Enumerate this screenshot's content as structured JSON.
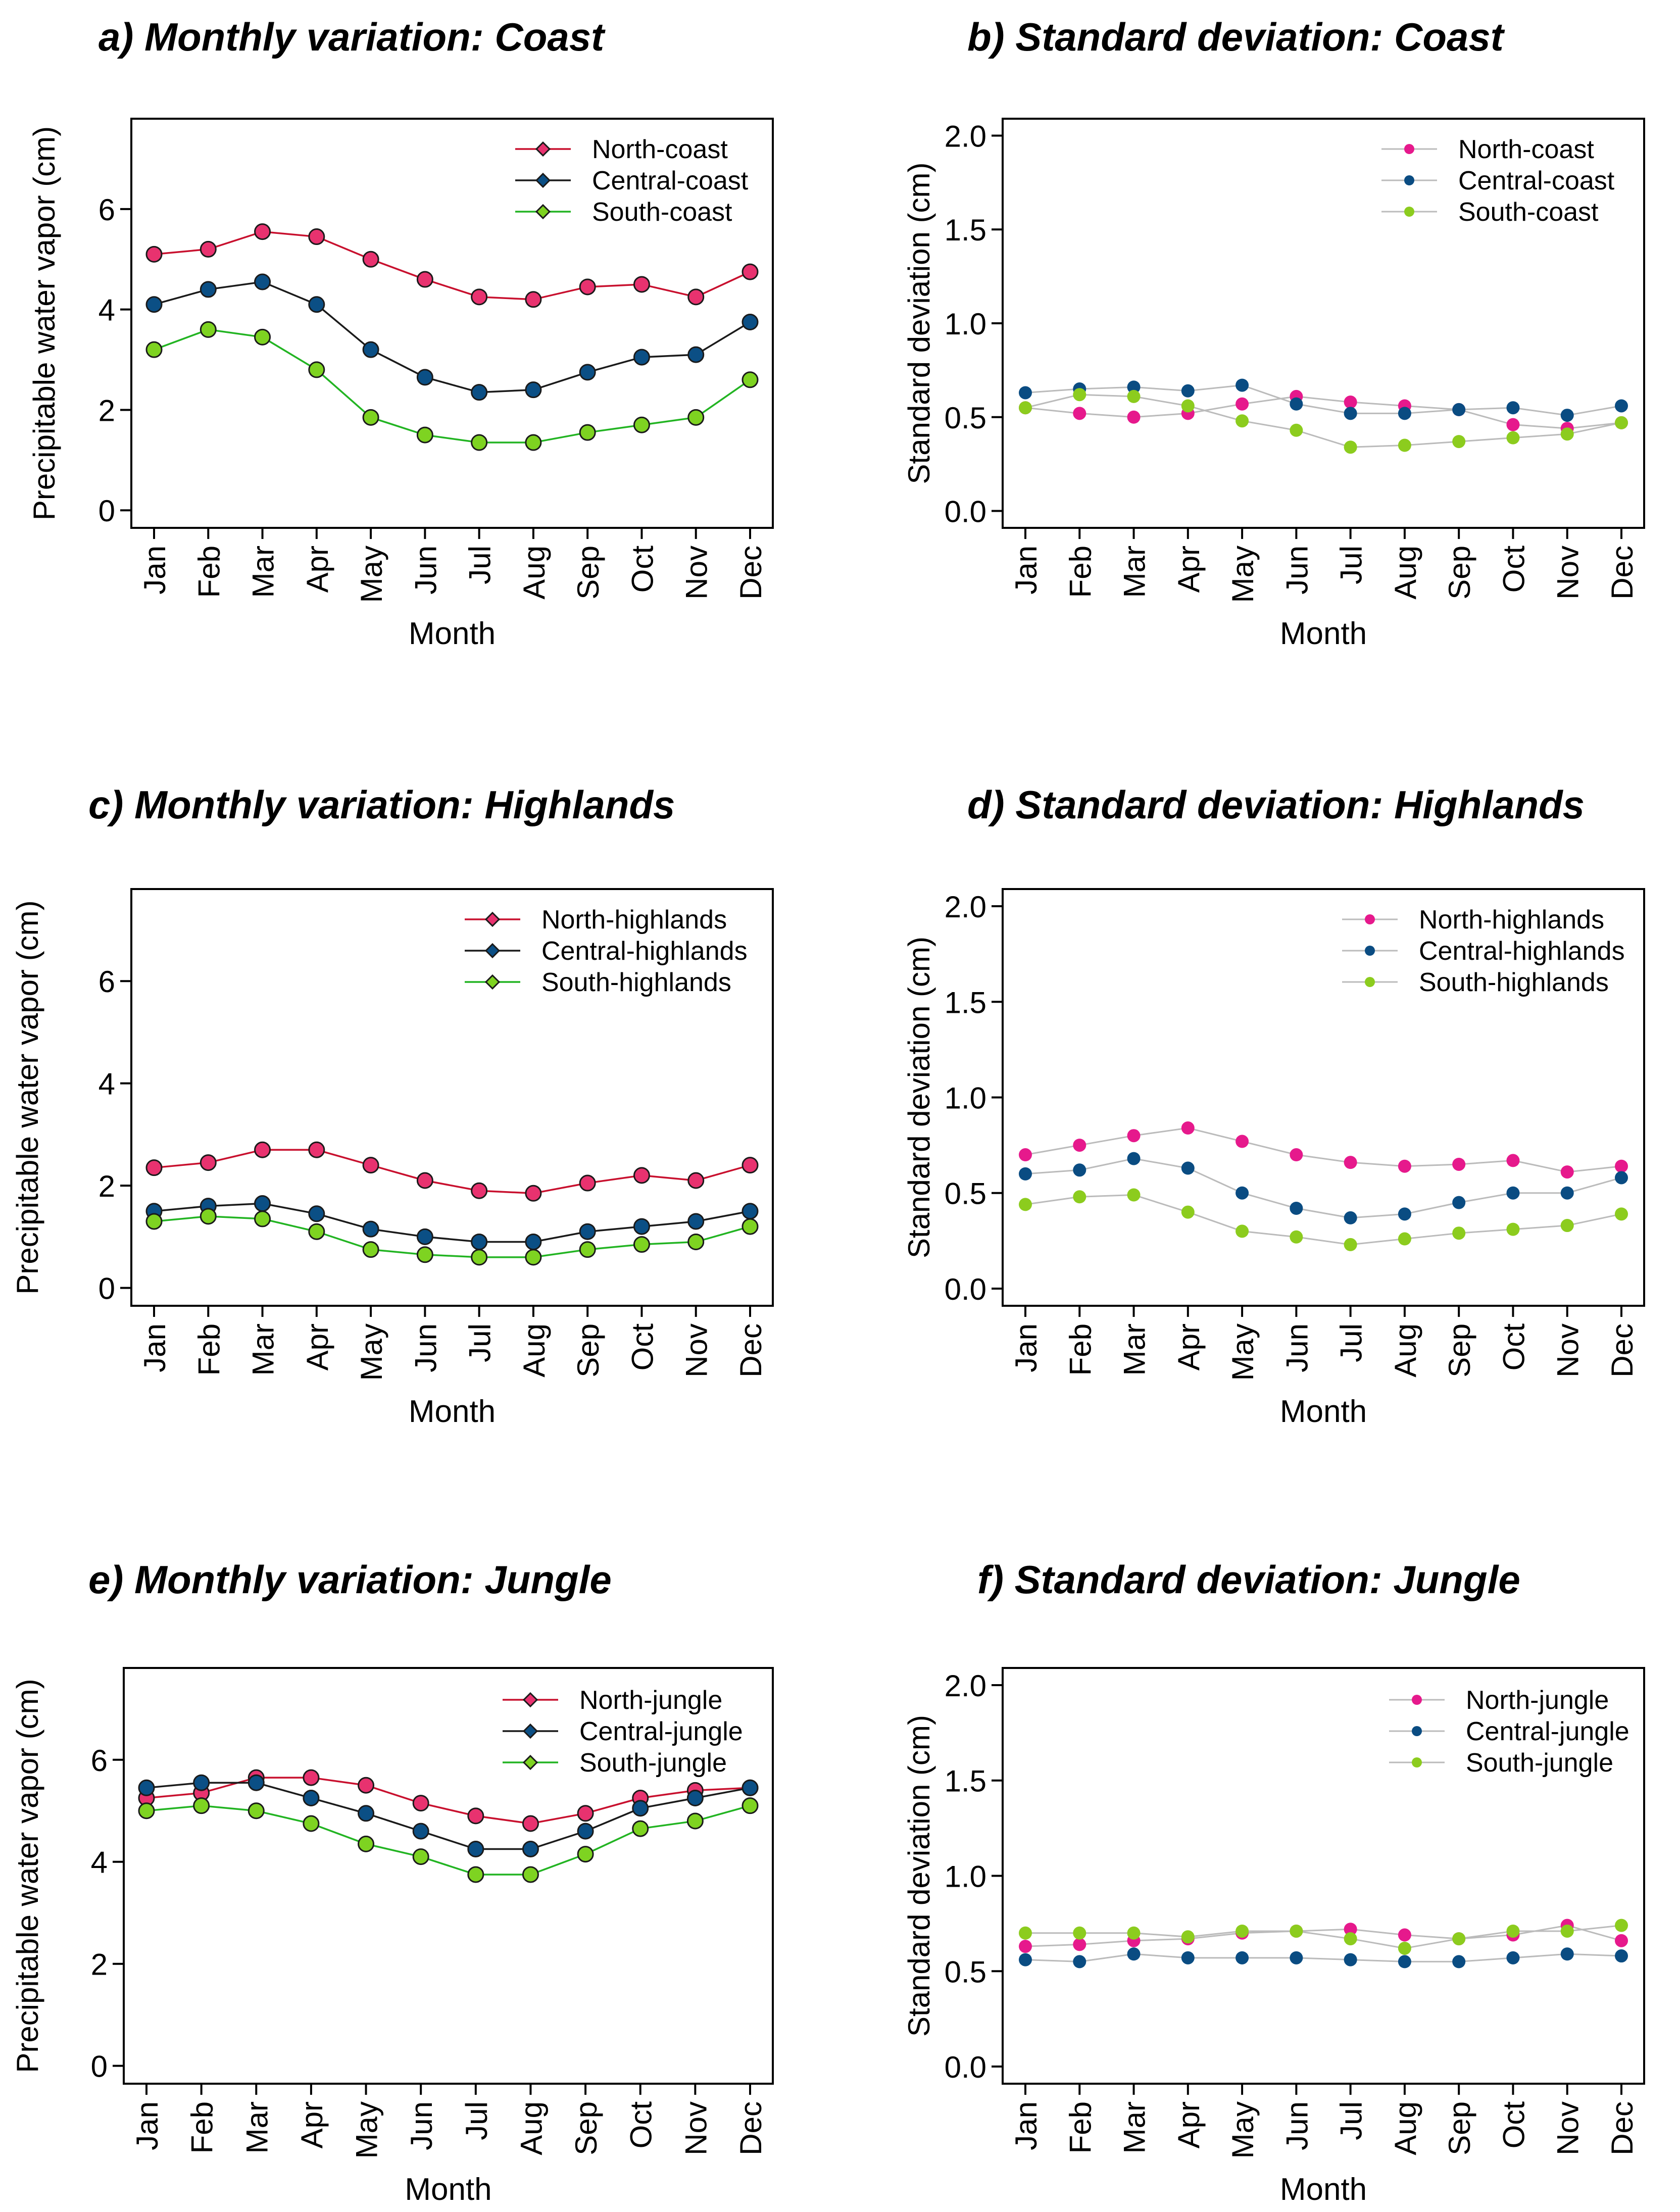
{
  "months": [
    "Jan",
    "Feb",
    "Mar",
    "Apr",
    "May",
    "Jun",
    "Jul",
    "Aug",
    "Sep",
    "Oct",
    "Nov",
    "Dec"
  ],
  "chart_data": [
    {
      "id": "a",
      "type": "line",
      "title": "a) Monthly variation: Coast",
      "xlabel": "Month",
      "ylabel": "Precipitable water vapor (cm)",
      "ylim": [
        -0.35,
        7.8
      ],
      "yticks": [
        0,
        2,
        4,
        6
      ],
      "ytick_labels": [
        "0",
        "2",
        "4",
        "6"
      ],
      "legend_position": "top-right",
      "series": [
        {
          "name": "North-coast",
          "line": "#c8102e",
          "fill": "#e8326f",
          "values": [
            5.1,
            5.2,
            5.55,
            5.45,
            5.0,
            4.6,
            4.25,
            4.2,
            4.45,
            4.5,
            4.25,
            4.75
          ]
        },
        {
          "name": "Central-coast",
          "line": "#1a1a1a",
          "fill": "#0b4f85",
          "values": [
            4.1,
            4.4,
            4.55,
            4.1,
            3.2,
            2.65,
            2.35,
            2.4,
            2.75,
            3.05,
            3.1,
            3.75
          ]
        },
        {
          "name": "South-coast",
          "line": "#22b422",
          "fill": "#7ed321",
          "values": [
            3.2,
            3.6,
            3.45,
            2.8,
            1.85,
            1.5,
            1.35,
            1.35,
            1.55,
            1.7,
            1.85,
            2.6
          ]
        }
      ]
    },
    {
      "id": "b",
      "type": "line",
      "title": "b) Standard deviation: Coast",
      "xlabel": "Month",
      "ylabel": "Standard deviation (cm)",
      "ylim": [
        -0.09,
        2.09
      ],
      "yticks": [
        0,
        0.5,
        1.0,
        1.5,
        2.0
      ],
      "ytick_labels": [
        "0.0",
        "0.5",
        "1.0",
        "1.5",
        "2.0"
      ],
      "legend_position": "top-right",
      "series": [
        {
          "name": "North-coast",
          "line": "#bbbbbb",
          "fill": "#e6198c",
          "values": [
            0.55,
            0.52,
            0.5,
            0.52,
            0.57,
            0.61,
            0.58,
            0.56,
            0.54,
            0.46,
            0.44,
            0.47
          ]
        },
        {
          "name": "Central-coast",
          "line": "#bbbbbb",
          "fill": "#0a4c82",
          "values": [
            0.63,
            0.65,
            0.66,
            0.64,
            0.67,
            0.57,
            0.52,
            0.52,
            0.54,
            0.55,
            0.51,
            0.56
          ]
        },
        {
          "name": "South-coast",
          "line": "#bbbbbb",
          "fill": "#8ccc1e",
          "values": [
            0.55,
            0.62,
            0.61,
            0.56,
            0.48,
            0.43,
            0.34,
            0.35,
            0.37,
            0.39,
            0.41,
            0.47
          ]
        }
      ]
    },
    {
      "id": "c",
      "type": "line",
      "title": "c) Monthly variation: Highlands",
      "xlabel": "Month",
      "ylabel": "Precipitable water vapor (cm)",
      "ylim": [
        -0.35,
        7.8
      ],
      "yticks": [
        0,
        2,
        4,
        6
      ],
      "ytick_labels": [
        "0",
        "2",
        "4",
        "6"
      ],
      "legend_position": "top-right",
      "series": [
        {
          "name": "North-highlands",
          "line": "#c8102e",
          "fill": "#e8326f",
          "values": [
            2.35,
            2.45,
            2.7,
            2.7,
            2.4,
            2.1,
            1.9,
            1.85,
            2.05,
            2.2,
            2.1,
            2.4
          ]
        },
        {
          "name": "Central-highlands",
          "line": "#1a1a1a",
          "fill": "#0b4f85",
          "values": [
            1.5,
            1.6,
            1.65,
            1.45,
            1.15,
            1.0,
            0.9,
            0.9,
            1.1,
            1.2,
            1.3,
            1.5
          ]
        },
        {
          "name": "South-highlands",
          "line": "#22b422",
          "fill": "#7ed321",
          "values": [
            1.3,
            1.4,
            1.35,
            1.1,
            0.75,
            0.65,
            0.6,
            0.6,
            0.75,
            0.85,
            0.9,
            1.2
          ]
        }
      ]
    },
    {
      "id": "d",
      "type": "line",
      "title": "d) Standard deviation: Highlands",
      "xlabel": "Month",
      "ylabel": "Standard deviation (cm)",
      "ylim": [
        -0.09,
        2.09
      ],
      "yticks": [
        0,
        0.5,
        1.0,
        1.5,
        2.0
      ],
      "ytick_labels": [
        "0.0",
        "0.5",
        "1.0",
        "1.5",
        "2.0"
      ],
      "legend_position": "top-right",
      "series": [
        {
          "name": "North-highlands",
          "line": "#bbbbbb",
          "fill": "#e6198c",
          "values": [
            0.7,
            0.75,
            0.8,
            0.84,
            0.77,
            0.7,
            0.66,
            0.64,
            0.65,
            0.67,
            0.61,
            0.64
          ]
        },
        {
          "name": "Central-highlands",
          "line": "#bbbbbb",
          "fill": "#0a4c82",
          "values": [
            0.6,
            0.62,
            0.68,
            0.63,
            0.5,
            0.42,
            0.37,
            0.39,
            0.45,
            0.5,
            0.5,
            0.58
          ]
        },
        {
          "name": "South-highlands",
          "line": "#bbbbbb",
          "fill": "#8ccc1e",
          "values": [
            0.44,
            0.48,
            0.49,
            0.4,
            0.3,
            0.27,
            0.23,
            0.26,
            0.29,
            0.31,
            0.33,
            0.39
          ]
        }
      ]
    },
    {
      "id": "e",
      "type": "line",
      "title": "e) Monthly variation: Jungle",
      "xlabel": "Month",
      "ylabel": "Precipitable water vapor (cm)",
      "ylim": [
        -0.35,
        7.8
      ],
      "yticks": [
        0,
        2,
        4,
        6
      ],
      "ytick_labels": [
        "0",
        "2",
        "4",
        "6"
      ],
      "legend_position": "top-right",
      "series": [
        {
          "name": "North-jungle",
          "line": "#c8102e",
          "fill": "#e8326f",
          "values": [
            5.25,
            5.35,
            5.65,
            5.65,
            5.5,
            5.15,
            4.9,
            4.75,
            4.95,
            5.25,
            5.4,
            5.45
          ]
        },
        {
          "name": "Central-jungle",
          "line": "#1a1a1a",
          "fill": "#0b4f85",
          "values": [
            5.45,
            5.55,
            5.55,
            5.25,
            4.95,
            4.6,
            4.25,
            4.25,
            4.6,
            5.05,
            5.25,
            5.45
          ]
        },
        {
          "name": "South-jungle",
          "line": "#22b422",
          "fill": "#7ed321",
          "values": [
            5.0,
            5.1,
            5.0,
            4.75,
            4.35,
            4.1,
            3.75,
            3.75,
            4.15,
            4.65,
            4.8,
            5.1
          ]
        }
      ]
    },
    {
      "id": "f",
      "type": "line",
      "title": "f) Standard deviation: Jungle",
      "xlabel": "Month",
      "ylabel": "Standard deviation (cm)",
      "ylim": [
        -0.09,
        2.09
      ],
      "yticks": [
        0,
        0.5,
        1.0,
        1.5,
        2.0
      ],
      "ytick_labels": [
        "0.0",
        "0.5",
        "1.0",
        "1.5",
        "2.0"
      ],
      "legend_position": "top-right",
      "series": [
        {
          "name": "North-jungle",
          "line": "#bbbbbb",
          "fill": "#e6198c",
          "values": [
            0.63,
            0.64,
            0.66,
            0.67,
            0.7,
            0.71,
            0.72,
            0.69,
            0.67,
            0.69,
            0.74,
            0.66
          ]
        },
        {
          "name": "Central-jungle",
          "line": "#bbbbbb",
          "fill": "#0a4c82",
          "values": [
            0.56,
            0.55,
            0.59,
            0.57,
            0.57,
            0.57,
            0.56,
            0.55,
            0.55,
            0.57,
            0.59,
            0.58
          ]
        },
        {
          "name": "South-jungle",
          "line": "#bbbbbb",
          "fill": "#8ccc1e",
          "values": [
            0.7,
            0.7,
            0.7,
            0.68,
            0.71,
            0.71,
            0.67,
            0.62,
            0.67,
            0.71,
            0.71,
            0.74
          ]
        }
      ]
    }
  ]
}
